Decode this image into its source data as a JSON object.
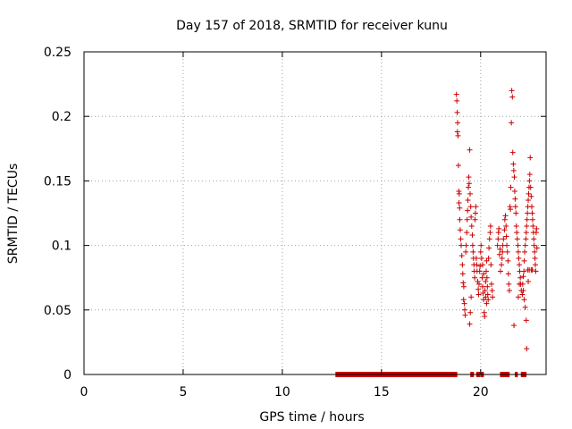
{
  "chart_data": {
    "type": "scatter",
    "title": "Day 157 of 2018, SRMTID for receiver kunu",
    "xlabel": "GPS time / hours",
    "ylabel": "SRMTID / TECUs",
    "xlim": [
      0,
      23.3
    ],
    "ylim": [
      0,
      0.25
    ],
    "xticks": [
      0,
      5,
      10,
      15,
      20
    ],
    "xtick_labels": [
      "0",
      "5",
      "10",
      "15",
      "20"
    ],
    "yticks": [
      0,
      0.05,
      0.1,
      0.15,
      0.2,
      0.25
    ],
    "ytick_labels": [
      "0",
      "0.05",
      "0.1",
      "0.15",
      "0.2",
      "0.25"
    ],
    "grid": true,
    "marker": "+",
    "color": "#cc0000",
    "zero_segments": [
      [
        12.7,
        18.8
      ],
      [
        19.5,
        19.65
      ],
      [
        19.8,
        19.95
      ],
      [
        20.0,
        20.15
      ],
      [
        21.0,
        21.45
      ],
      [
        21.75,
        21.85
      ],
      [
        22.05,
        22.3
      ]
    ],
    "series": [
      {
        "name": "SRMTID",
        "points": [
          [
            18.78,
            0.217
          ],
          [
            18.8,
            0.212
          ],
          [
            18.82,
            0.203
          ],
          [
            18.84,
            0.195
          ],
          [
            18.83,
            0.188
          ],
          [
            18.86,
            0.185
          ],
          [
            18.88,
            0.162
          ],
          [
            18.9,
            0.142
          ],
          [
            18.92,
            0.14
          ],
          [
            18.91,
            0.133
          ],
          [
            18.94,
            0.129
          ],
          [
            18.95,
            0.12
          ],
          [
            18.97,
            0.112
          ],
          [
            19.0,
            0.105
          ],
          [
            19.02,
            0.1
          ],
          [
            19.05,
            0.092
          ],
          [
            19.08,
            0.085
          ],
          [
            19.1,
            0.078
          ],
          [
            19.12,
            0.071
          ],
          [
            19.15,
            0.068
          ],
          [
            19.14,
            0.058
          ],
          [
            19.18,
            0.055
          ],
          [
            19.2,
            0.05
          ],
          [
            19.22,
            0.046
          ],
          [
            19.25,
            0.095
          ],
          [
            19.27,
            0.1
          ],
          [
            19.3,
            0.11
          ],
          [
            19.32,
            0.12
          ],
          [
            19.34,
            0.127
          ],
          [
            19.36,
            0.135
          ],
          [
            19.38,
            0.145
          ],
          [
            19.4,
            0.153
          ],
          [
            19.42,
            0.148
          ],
          [
            19.45,
            0.174
          ],
          [
            19.47,
            0.14
          ],
          [
            19.5,
            0.13
          ],
          [
            19.52,
            0.122
          ],
          [
            19.55,
            0.115
          ],
          [
            19.58,
            0.108
          ],
          [
            19.6,
            0.1
          ],
          [
            19.62,
            0.095
          ],
          [
            19.64,
            0.09
          ],
          [
            19.66,
            0.085
          ],
          [
            19.68,
            0.08
          ],
          [
            19.7,
            0.075
          ],
          [
            19.45,
            0.039
          ],
          [
            19.48,
            0.048
          ],
          [
            19.52,
            0.06
          ],
          [
            19.72,
            0.12
          ],
          [
            19.74,
            0.125
          ],
          [
            19.76,
            0.13
          ],
          [
            19.78,
            0.09
          ],
          [
            19.8,
            0.085
          ],
          [
            19.82,
            0.08
          ],
          [
            19.85,
            0.072
          ],
          [
            19.88,
            0.066
          ],
          [
            19.9,
            0.062
          ],
          [
            19.92,
            0.07
          ],
          [
            19.95,
            0.08
          ],
          [
            19.97,
            0.084
          ],
          [
            20.0,
            0.095
          ],
          [
            20.02,
            0.1
          ],
          [
            20.05,
            0.09
          ],
          [
            20.08,
            0.075
          ],
          [
            20.1,
            0.068
          ],
          [
            20.12,
            0.063
          ],
          [
            20.15,
            0.058
          ],
          [
            20.18,
            0.048
          ],
          [
            20.2,
            0.045
          ],
          [
            20.22,
            0.065
          ],
          [
            20.25,
            0.072
          ],
          [
            20.28,
            0.08
          ],
          [
            20.3,
            0.088
          ],
          [
            20.32,
            0.075
          ],
          [
            20.34,
            0.068
          ],
          [
            20.36,
            0.062
          ],
          [
            20.38,
            0.058
          ],
          [
            20.4,
            0.09
          ],
          [
            20.42,
            0.098
          ],
          [
            20.45,
            0.105
          ],
          [
            20.48,
            0.11
          ],
          [
            20.5,
            0.115
          ],
          [
            20.52,
            0.085
          ],
          [
            20.55,
            0.07
          ],
          [
            20.58,
            0.065
          ],
          [
            20.6,
            0.06
          ],
          [
            20.1,
            0.085
          ],
          [
            20.15,
            0.078
          ],
          [
            20.25,
            0.06
          ],
          [
            20.3,
            0.055
          ],
          [
            20.85,
            0.1
          ],
          [
            20.88,
            0.105
          ],
          [
            20.9,
            0.11
          ],
          [
            20.92,
            0.113
          ],
          [
            20.95,
            0.093
          ],
          [
            20.98,
            0.097
          ],
          [
            21.0,
            0.08
          ],
          [
            21.05,
            0.085
          ],
          [
            21.08,
            0.09
          ],
          [
            21.1,
            0.095
          ],
          [
            21.12,
            0.1
          ],
          [
            21.15,
            0.105
          ],
          [
            21.2,
            0.112
          ],
          [
            21.22,
            0.12
          ],
          [
            21.25,
            0.123
          ],
          [
            21.28,
            0.115
          ],
          [
            21.3,
            0.107
          ],
          [
            21.32,
            0.1
          ],
          [
            21.35,
            0.095
          ],
          [
            21.38,
            0.088
          ],
          [
            21.4,
            0.078
          ],
          [
            21.42,
            0.07
          ],
          [
            21.45,
            0.065
          ],
          [
            21.48,
            0.13
          ],
          [
            21.5,
            0.128
          ],
          [
            21.52,
            0.145
          ],
          [
            21.55,
            0.195
          ],
          [
            21.57,
            0.22
          ],
          [
            21.6,
            0.215
          ],
          [
            21.62,
            0.172
          ],
          [
            21.65,
            0.163
          ],
          [
            21.67,
            0.158
          ],
          [
            21.7,
            0.153
          ],
          [
            21.72,
            0.142
          ],
          [
            21.74,
            0.136
          ],
          [
            21.76,
            0.13
          ],
          [
            21.78,
            0.125
          ],
          [
            21.8,
            0.115
          ],
          [
            21.82,
            0.11
          ],
          [
            21.85,
            0.105
          ],
          [
            21.88,
            0.1
          ],
          [
            21.9,
            0.095
          ],
          [
            21.92,
            0.09
          ],
          [
            21.95,
            0.085
          ],
          [
            21.97,
            0.08
          ],
          [
            22.0,
            0.075
          ],
          [
            22.02,
            0.07
          ],
          [
            22.05,
            0.065
          ],
          [
            21.68,
            0.038
          ],
          [
            21.9,
            0.06
          ],
          [
            21.95,
            0.07
          ],
          [
            22.1,
            0.062
          ],
          [
            22.12,
            0.07
          ],
          [
            22.15,
            0.076
          ],
          [
            22.18,
            0.08
          ],
          [
            22.2,
            0.088
          ],
          [
            22.22,
            0.095
          ],
          [
            22.25,
            0.1
          ],
          [
            22.28,
            0.105
          ],
          [
            22.3,
            0.11
          ],
          [
            22.32,
            0.115
          ],
          [
            22.34,
            0.12
          ],
          [
            22.36,
            0.125
          ],
          [
            22.38,
            0.13
          ],
          [
            22.4,
            0.135
          ],
          [
            22.42,
            0.14
          ],
          [
            22.44,
            0.145
          ],
          [
            22.46,
            0.15
          ],
          [
            22.48,
            0.155
          ],
          [
            22.5,
            0.168
          ],
          [
            22.52,
            0.145
          ],
          [
            22.55,
            0.138
          ],
          [
            22.58,
            0.13
          ],
          [
            22.6,
            0.125
          ],
          [
            22.62,
            0.12
          ],
          [
            22.64,
            0.115
          ],
          [
            22.66,
            0.11
          ],
          [
            22.68,
            0.105
          ],
          [
            22.7,
            0.1
          ],
          [
            22.72,
            0.095
          ],
          [
            22.74,
            0.09
          ],
          [
            22.76,
            0.085
          ],
          [
            22.78,
            0.08
          ],
          [
            22.8,
            0.11
          ],
          [
            22.82,
            0.113
          ],
          [
            22.84,
            0.098
          ],
          [
            22.3,
            0.042
          ],
          [
            22.32,
            0.02
          ],
          [
            22.38,
            0.081
          ],
          [
            22.45,
            0.081
          ],
          [
            22.6,
            0.081
          ],
          [
            22.55,
            0.081
          ],
          [
            22.2,
            0.058
          ],
          [
            22.25,
            0.052
          ],
          [
            22.15,
            0.065
          ],
          [
            22.4,
            0.072
          ]
        ]
      }
    ]
  }
}
